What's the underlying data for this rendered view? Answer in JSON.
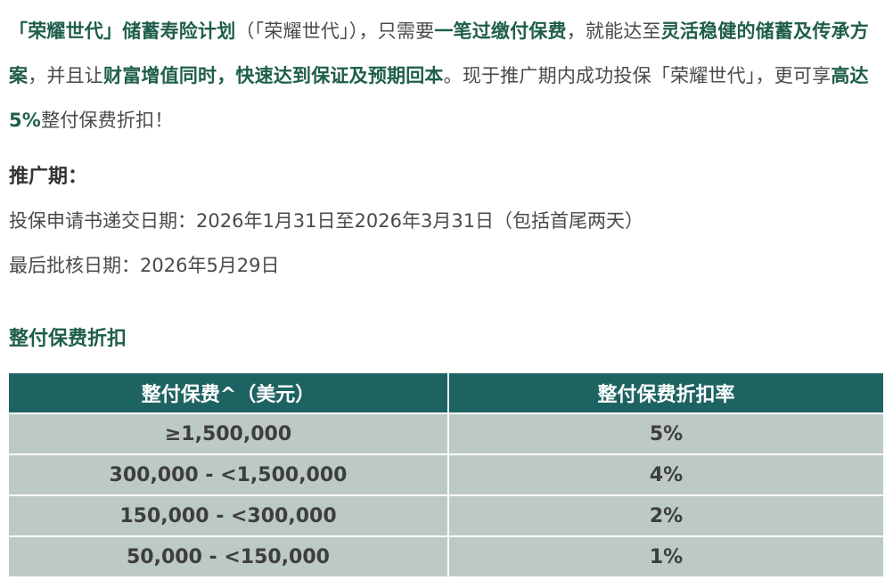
{
  "intro": {
    "p1": "「荣耀世代」储蓄寿险计划",
    "p2": "（「荣耀世代」），只需要",
    "p3": "一笔过缴付保费",
    "p4": "，就能达至",
    "p5": "灵活稳健的储蓄及传承方案",
    "p6": "，并且让",
    "p7": "财富增值同时，快速达到保证及预期回本",
    "p8": "。现于推广期内成功投保「荣耀世代」，更可享",
    "p9": "高达5%",
    "p10": "整付保费折扣！"
  },
  "promo": {
    "title": "推广期：",
    "submission": "投保申请书递交日期：2026年1月31日至2026年3月31日（包括首尾两天）",
    "approval": "最后批核日期：2026年5月29日"
  },
  "discount_table": {
    "title": "整付保费折扣",
    "headers": [
      "整付保费^（美元）",
      "整付保费折扣率"
    ],
    "rows": [
      [
        "≥1,500,000",
        "5%"
      ],
      [
        "300,000 - <1,500,000",
        "4%"
      ],
      [
        "150,000 - <300,000",
        "2%"
      ],
      [
        "50,000 - <150,000",
        "1%"
      ]
    ]
  },
  "colors": {
    "accent_green": "#1f5e4c",
    "header_bg": "#1d6362",
    "row_bg": "#bcc9c7"
  }
}
